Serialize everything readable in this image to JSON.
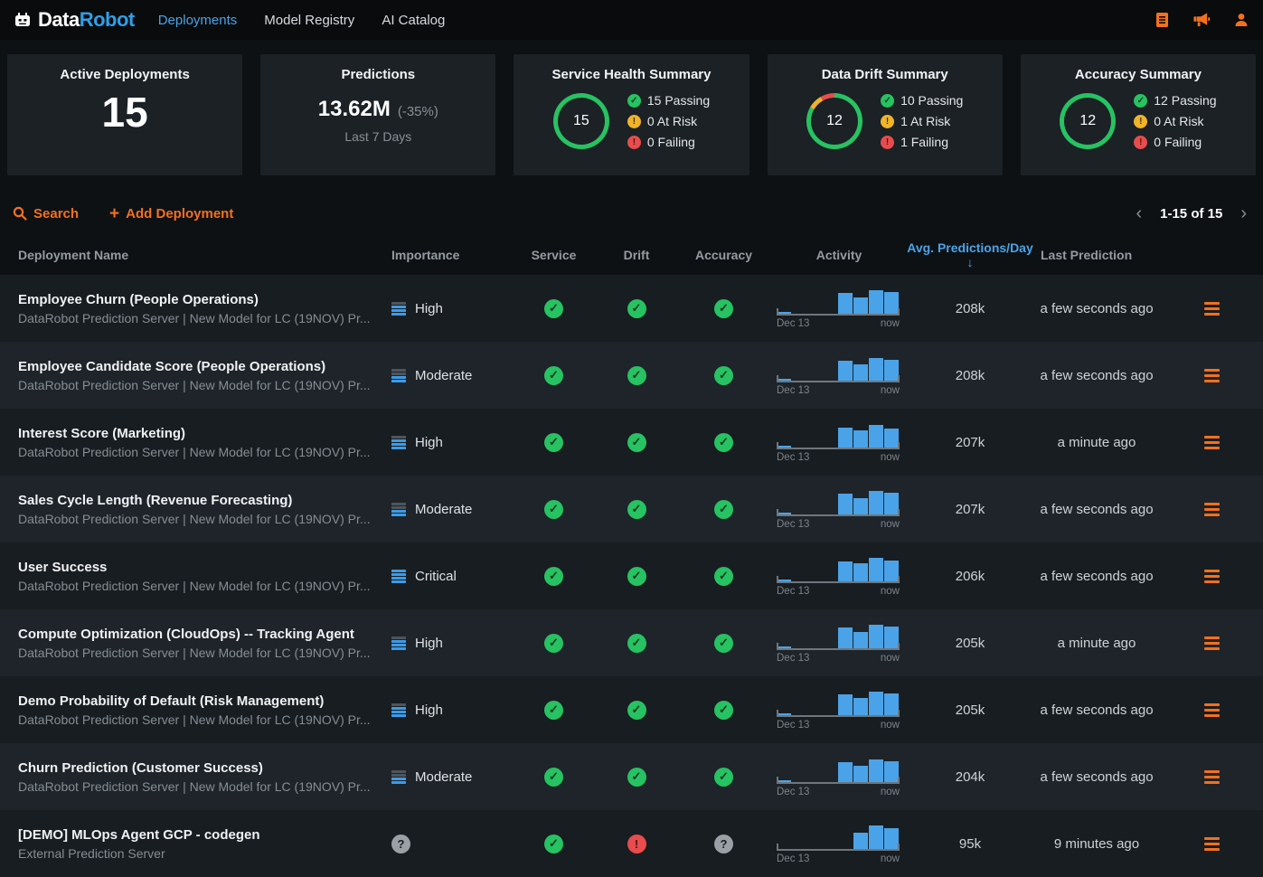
{
  "colors": {
    "green": "#27c262",
    "yellow": "#f0b429",
    "red": "#e84c4c",
    "blue": "#4aa3e8",
    "orange": "#f4701d"
  },
  "nav": {
    "brand_data": "Data",
    "brand_robot": "Robot",
    "items": [
      {
        "label": "Deployments",
        "active": true
      },
      {
        "label": "Model Registry",
        "active": false
      },
      {
        "label": "AI Catalog",
        "active": false
      }
    ]
  },
  "cards": {
    "active_deployments": {
      "title": "Active Deployments",
      "value": "15"
    },
    "predictions": {
      "title": "Predictions",
      "value": "13.62M",
      "delta": "(-35%)",
      "period": "Last 7 Days"
    },
    "service_health": {
      "title": "Service Health Summary",
      "total": "15",
      "passing_label": "15 Passing",
      "at_risk_label": "0 At Risk",
      "failing_label": "0 Failing",
      "counts": {
        "passing": 15,
        "at_risk": 0,
        "failing": 0
      }
    },
    "data_drift": {
      "title": "Data Drift Summary",
      "total": "12",
      "passing_label": "10 Passing",
      "at_risk_label": "1 At Risk",
      "failing_label": "1 Failing",
      "counts": {
        "passing": 10,
        "at_risk": 1,
        "failing": 1
      }
    },
    "accuracy": {
      "title": "Accuracy Summary",
      "total": "12",
      "passing_label": "12 Passing",
      "at_risk_label": "0 At Risk",
      "failing_label": "0 Failing",
      "counts": {
        "passing": 12,
        "at_risk": 0,
        "failing": 0
      }
    }
  },
  "toolbar": {
    "search_label": "Search",
    "add_label": "Add Deployment",
    "pagination": "1-15 of 15",
    "prev_glyph": "‹",
    "next_glyph": "›"
  },
  "table": {
    "headers": {
      "name": "Deployment Name",
      "importance": "Importance",
      "service": "Service",
      "drift": "Drift",
      "accuracy": "Accuracy",
      "activity": "Activity",
      "avg_predictions": "Avg. Predictions/Day",
      "sort_arrow": "↓",
      "last_prediction": "Last Prediction"
    },
    "activity_axis": {
      "start": "Dec 13",
      "end": "now"
    },
    "rows": [
      {
        "name": "Employee Churn (People Operations)",
        "subtitle": "DataRobot Prediction Server | New Model for LC (19NOV) Pr...",
        "importance": {
          "level": "High",
          "bars": 3
        },
        "service": "pass",
        "drift": "pass",
        "accuracy": "pass",
        "activity": [
          0.08,
          0,
          0,
          0,
          0.78,
          0.6,
          0.88,
          0.8
        ],
        "avg_predictions": "208k",
        "last_prediction": "a few seconds ago"
      },
      {
        "name": "Employee Candidate Score (People Operations)",
        "subtitle": "DataRobot Prediction Server | New Model for LC (19NOV) Pr...",
        "importance": {
          "level": "Moderate",
          "bars": 2
        },
        "service": "pass",
        "drift": "pass",
        "accuracy": "pass",
        "activity": [
          0.08,
          0,
          0,
          0,
          0.72,
          0.6,
          0.82,
          0.78
        ],
        "avg_predictions": "208k",
        "last_prediction": "a few seconds ago"
      },
      {
        "name": "Interest Score (Marketing)",
        "subtitle": "DataRobot Prediction Server | New Model for LC (19NOV) Pr...",
        "importance": {
          "level": "High",
          "bars": 3
        },
        "service": "pass",
        "drift": "pass",
        "accuracy": "pass",
        "activity": [
          0.08,
          0,
          0,
          0,
          0.72,
          0.62,
          0.82,
          0.7
        ],
        "avg_predictions": "207k",
        "last_prediction": "a minute ago"
      },
      {
        "name": "Sales Cycle Length (Revenue Forecasting)",
        "subtitle": "DataRobot Prediction Server | New Model for LC (19NOV) Pr...",
        "importance": {
          "level": "Moderate",
          "bars": 2
        },
        "service": "pass",
        "drift": "pass",
        "accuracy": "pass",
        "activity": [
          0.08,
          0,
          0,
          0,
          0.75,
          0.6,
          0.85,
          0.8
        ],
        "avg_predictions": "207k",
        "last_prediction": "a few seconds ago"
      },
      {
        "name": "User Success",
        "subtitle": "DataRobot Prediction Server | New Model for LC (19NOV) Pr...",
        "importance": {
          "level": "Critical",
          "bars": 4
        },
        "service": "pass",
        "drift": "pass",
        "accuracy": "pass",
        "activity": [
          0.08,
          0,
          0,
          0,
          0.72,
          0.65,
          0.85,
          0.75
        ],
        "avg_predictions": "206k",
        "last_prediction": "a few seconds ago"
      },
      {
        "name": "Compute Optimization (CloudOps) -- Tracking Agent",
        "subtitle": "DataRobot Prediction Server | New Model for LC (19NOV) Pr...",
        "importance": {
          "level": "High",
          "bars": 3
        },
        "service": "pass",
        "drift": "pass",
        "accuracy": "pass",
        "activity": [
          0.08,
          0,
          0,
          0,
          0.75,
          0.6,
          0.85,
          0.8
        ],
        "avg_predictions": "205k",
        "last_prediction": "a minute ago"
      },
      {
        "name": "Demo Probability of Default (Risk Management)",
        "subtitle": "DataRobot Prediction Server | New Model for LC (19NOV) Pr...",
        "importance": {
          "level": "High",
          "bars": 3
        },
        "service": "pass",
        "drift": "pass",
        "accuracy": "pass",
        "activity": [
          0.08,
          0,
          0,
          0,
          0.78,
          0.62,
          0.85,
          0.8
        ],
        "avg_predictions": "205k",
        "last_prediction": "a few seconds ago"
      },
      {
        "name": "Churn Prediction (Customer Success)",
        "subtitle": "DataRobot Prediction Server | New Model for LC (19NOV) Pr...",
        "importance": {
          "level": "Moderate",
          "bars": 2
        },
        "service": "pass",
        "drift": "pass",
        "accuracy": "pass",
        "activity": [
          0.08,
          0,
          0,
          0,
          0.72,
          0.6,
          0.82,
          0.78
        ],
        "avg_predictions": "204k",
        "last_prediction": "a few seconds ago"
      },
      {
        "name": "[DEMO] MLOps Agent GCP - codegen",
        "subtitle": "External Prediction Server",
        "importance": {
          "unknown": true
        },
        "service": "pass",
        "drift": "fail",
        "accuracy": "unknown",
        "activity": [
          0,
          0,
          0,
          0,
          0,
          0.6,
          0.88,
          0.75
        ],
        "avg_predictions": "95k",
        "last_prediction": "9 minutes ago"
      }
    ]
  }
}
